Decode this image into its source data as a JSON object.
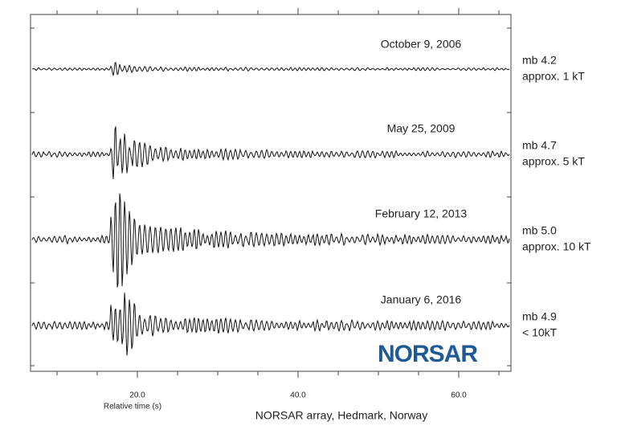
{
  "traces": [
    {
      "date": "October 9, 2006",
      "magnitude": "mb 4.2",
      "yield": "approx. 1 kT"
    },
    {
      "date": "May 25, 2009",
      "magnitude": "mb 4.7",
      "yield": "approx. 5 kT"
    },
    {
      "date": "February 12, 2013",
      "magnitude": "mb 5.0",
      "yield": "approx. 10 kT"
    },
    {
      "date": "January 6, 2016",
      "magnitude": "mb 4.9",
      "yield": "< 10kT"
    }
  ],
  "x_axis": {
    "label": "Relative time (s)",
    "xlim": [
      6.7,
      66.5
    ],
    "xticks": [
      {
        "value": 20,
        "label": "20.0"
      },
      {
        "value": 40,
        "label": "40.0"
      },
      {
        "value": 60,
        "label": "60.0"
      }
    ],
    "minor_xticks": [
      10,
      15,
      25,
      30,
      35,
      45,
      50,
      55,
      65
    ]
  },
  "caption": "NORSAR array, Hedmark, Norway",
  "logo": "NORSAR"
}
